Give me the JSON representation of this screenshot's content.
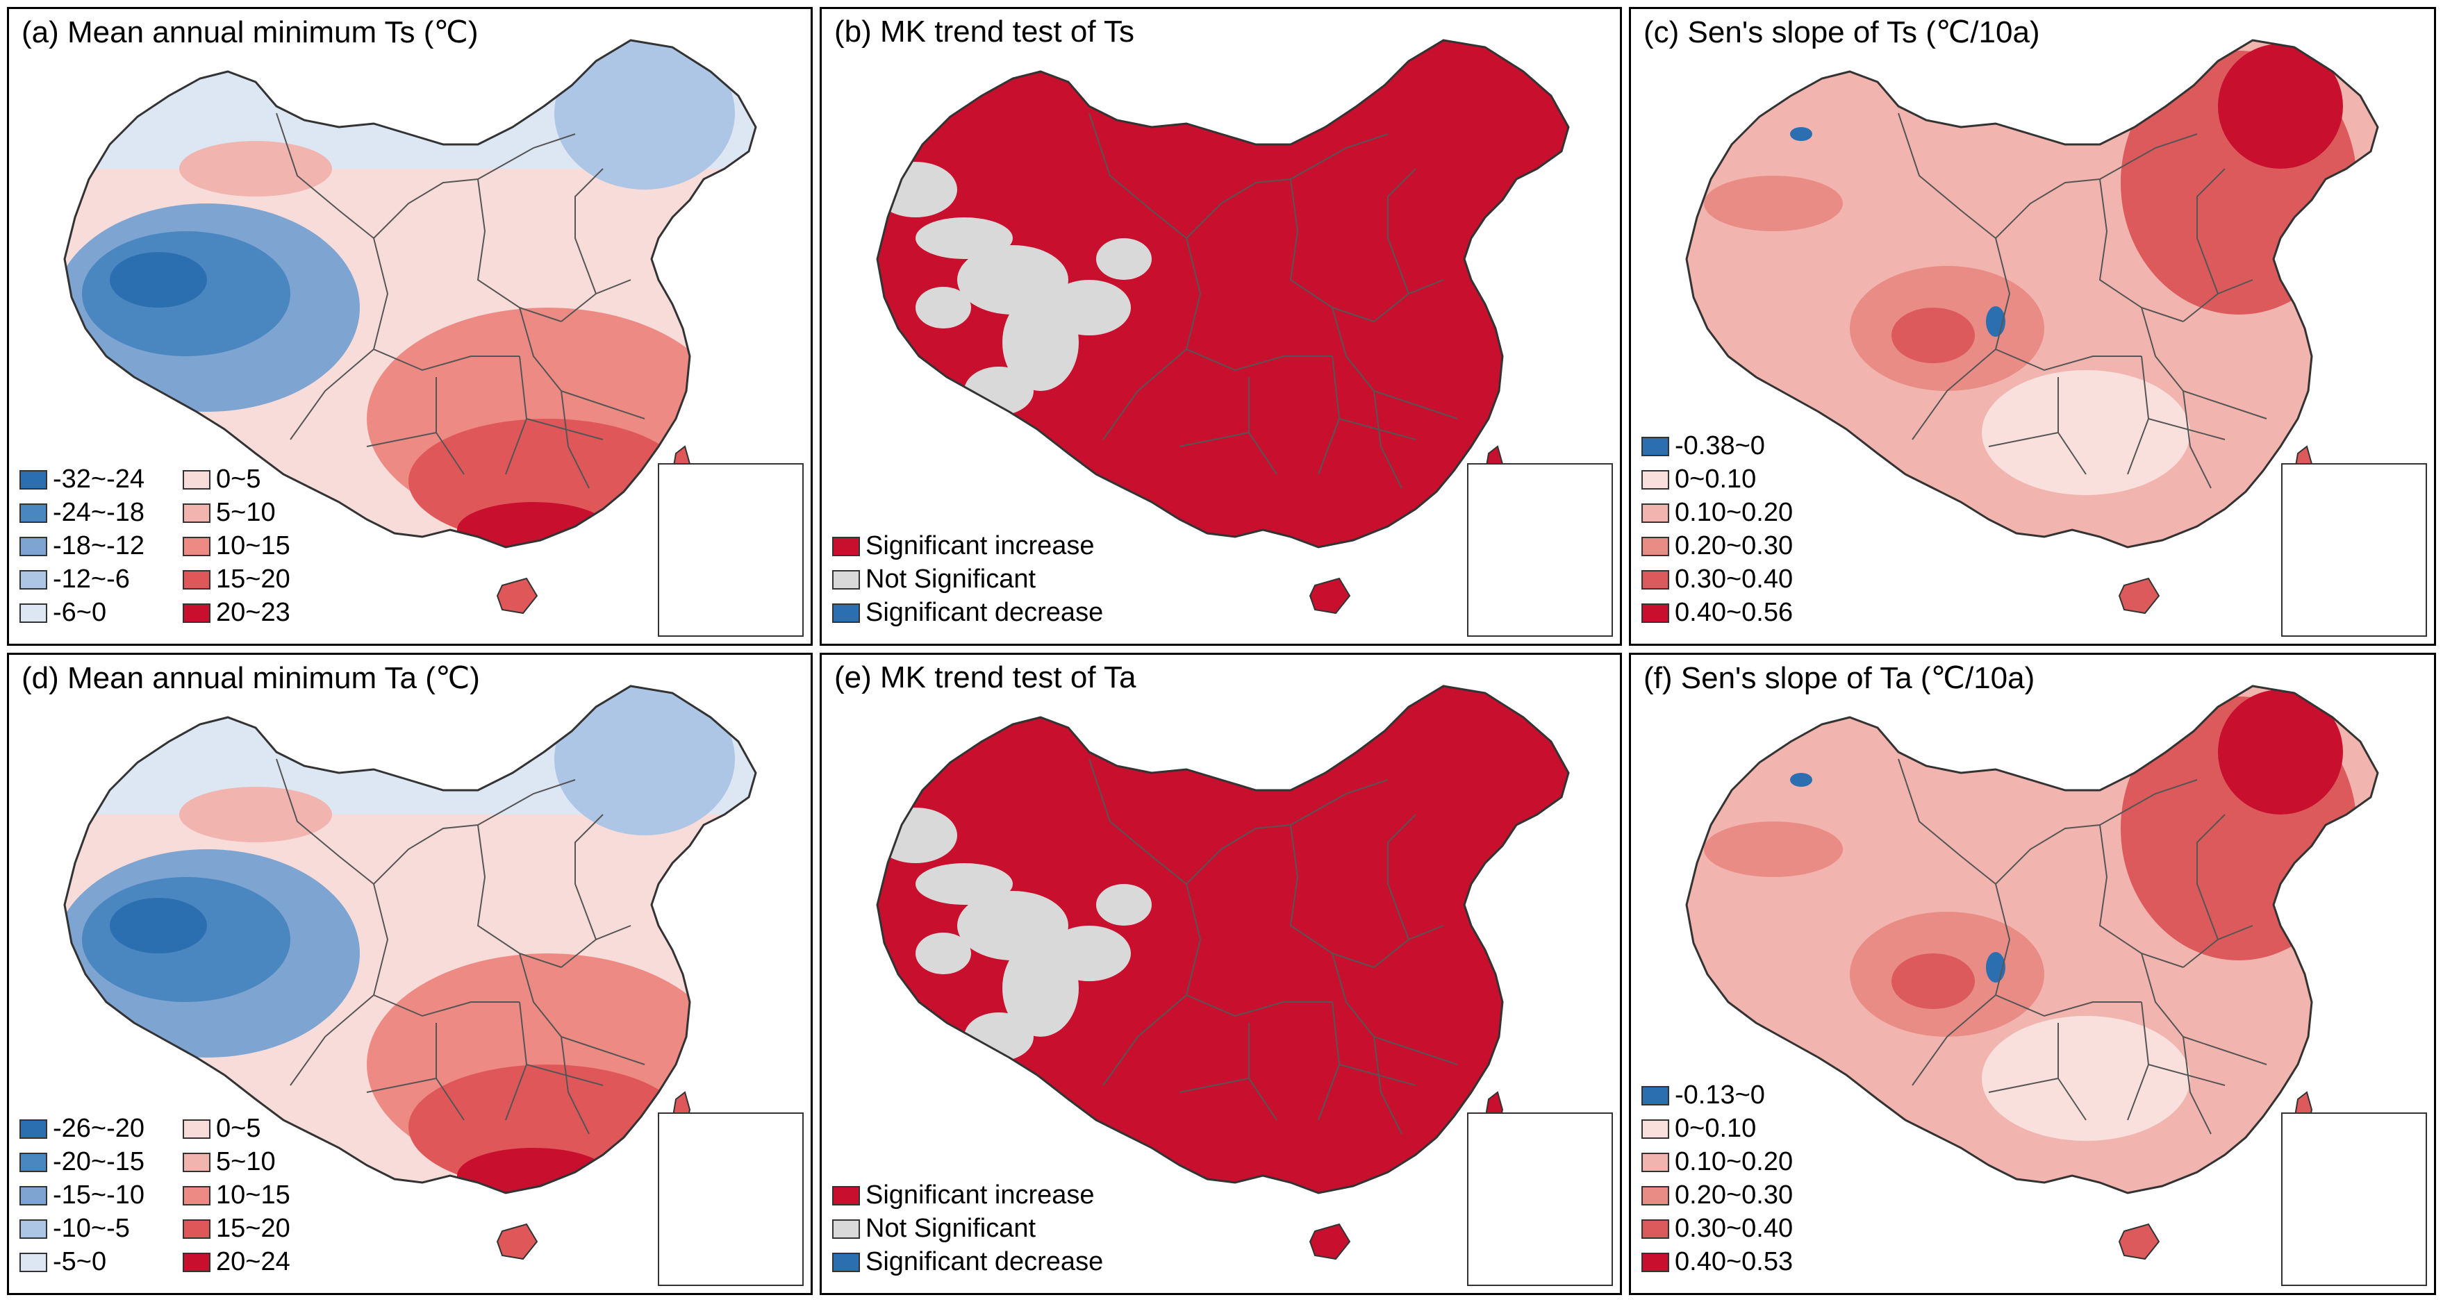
{
  "panels": [
    {
      "title": "(a) Mean annual minimum Ts (℃)",
      "kind": "mean",
      "legend_two_col": true,
      "legend": [
        {
          "label": "-32~-24",
          "color": "#2c6fb0"
        },
        {
          "label": "-24~-18",
          "color": "#4a86c0"
        },
        {
          "label": "-18~-12",
          "color": "#7ea5d2"
        },
        {
          "label": "-12~-6",
          "color": "#adc6e6"
        },
        {
          "label": "-6~0",
          "color": "#dde7f3"
        },
        {
          "label": "0~5",
          "color": "#f8dcd9"
        },
        {
          "label": "5~10",
          "color": "#f2b4ae"
        },
        {
          "label": "10~15",
          "color": "#ec8a83"
        },
        {
          "label": "15~20",
          "color": "#e0575a"
        },
        {
          "label": "20~23",
          "color": "#c8102e"
        }
      ]
    },
    {
      "title": "(b) MK trend test of Ts",
      "kind": "mk",
      "legend_two_col": false,
      "legend": [
        {
          "label": "Significant increase",
          "color": "#c8102e"
        },
        {
          "label": "Not Significant",
          "color": "#d9d9d9"
        },
        {
          "label": "Significant decrease",
          "color": "#2c6fb0"
        }
      ]
    },
    {
      "title": "(c) Sen's slope of Ts (℃/10a)",
      "kind": "sen",
      "legend_two_col": false,
      "legend": [
        {
          "label": "-0.38~0",
          "color": "#2c6fb0"
        },
        {
          "label": "0~0.10",
          "color": "#f9e0dd"
        },
        {
          "label": "0.10~0.20",
          "color": "#f2b4ae"
        },
        {
          "label": "0.20~0.30",
          "color": "#e98c86"
        },
        {
          "label": "0.30~0.40",
          "color": "#dc5a5c"
        },
        {
          "label": "0.40~0.56",
          "color": "#c8102e"
        }
      ]
    },
    {
      "title": "(d) Mean annual minimum Ta (℃)",
      "kind": "mean",
      "legend_two_col": true,
      "legend": [
        {
          "label": "-26~-20",
          "color": "#2c6fb0"
        },
        {
          "label": "-20~-15",
          "color": "#4a86c0"
        },
        {
          "label": "-15~-10",
          "color": "#7ea5d2"
        },
        {
          "label": "-10~-5",
          "color": "#adc6e6"
        },
        {
          "label": "-5~0",
          "color": "#dde7f3"
        },
        {
          "label": "0~5",
          "color": "#f8dcd9"
        },
        {
          "label": "5~10",
          "color": "#f2b4ae"
        },
        {
          "label": "10~15",
          "color": "#ec8a83"
        },
        {
          "label": "15~20",
          "color": "#e0575a"
        },
        {
          "label": "20~24",
          "color": "#c8102e"
        }
      ]
    },
    {
      "title": "(e) MK trend test of Ta",
      "kind": "mk",
      "legend_two_col": false,
      "legend": [
        {
          "label": "Significant increase",
          "color": "#c8102e"
        },
        {
          "label": "Not Significant",
          "color": "#d9d9d9"
        },
        {
          "label": "Significant decrease",
          "color": "#2c6fb0"
        }
      ]
    },
    {
      "title": "(f) Sen's slope of Ta (℃/10a)",
      "kind": "sen",
      "legend_two_col": false,
      "legend": [
        {
          "label": "-0.13~0",
          "color": "#2c6fb0"
        },
        {
          "label": "0~0.10",
          "color": "#f9e0dd"
        },
        {
          "label": "0.10~0.20",
          "color": "#f2b4ae"
        },
        {
          "label": "0.20~0.30",
          "color": "#e98c86"
        },
        {
          "label": "0.30~0.40",
          "color": "#dc5a5c"
        },
        {
          "label": "0.40~0.53",
          "color": "#c8102e"
        }
      ]
    }
  ]
}
